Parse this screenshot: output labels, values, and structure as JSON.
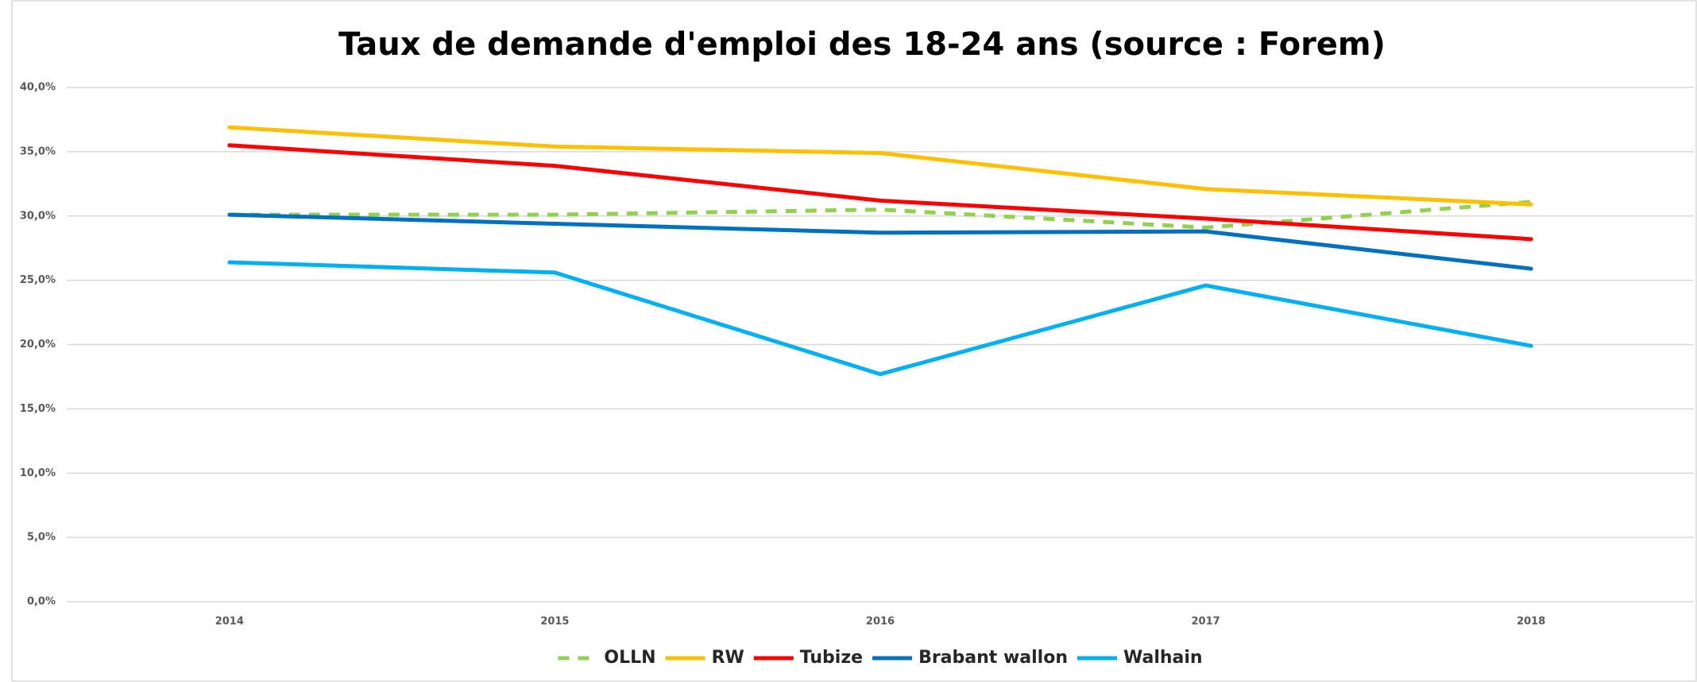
{
  "chart_data": {
    "type": "line",
    "title": "Taux de demande d'emploi des 18-24 ans (source : Forem)",
    "categories": [
      "2014",
      "2015",
      "2016",
      "2017",
      "2018"
    ],
    "series": [
      {
        "name": "OLLN",
        "color": "#92d050",
        "dash": true,
        "values": [
          30.1,
          30.1,
          30.5,
          29.1,
          31.1
        ]
      },
      {
        "name": "RW",
        "color": "#ffc000",
        "values": [
          36.9,
          35.4,
          34.9,
          32.1,
          30.9
        ]
      },
      {
        "name": "Tubize",
        "color": "#ff0000",
        "values": [
          35.5,
          33.9,
          31.2,
          29.8,
          28.2
        ]
      },
      {
        "name": "Brabant wallon",
        "color": "#0070c0",
        "values": [
          30.1,
          29.4,
          28.7,
          28.8,
          25.9
        ]
      },
      {
        "name": "Walhain",
        "color": "#00b0f0",
        "values": [
          26.4,
          25.6,
          17.7,
          24.6,
          19.9
        ]
      }
    ],
    "ylim": [
      0,
      40
    ],
    "yticks": [
      {
        "value": 0,
        "label": "0,0%"
      },
      {
        "value": 5,
        "label": "5,0%"
      },
      {
        "value": 10,
        "label": "10,0%"
      },
      {
        "value": 15,
        "label": "15,0%"
      },
      {
        "value": 20,
        "label": "20,0%"
      },
      {
        "value": 25,
        "label": "25,0%"
      },
      {
        "value": 30,
        "label": "30,0%"
      },
      {
        "value": 35,
        "label": "35,0%"
      },
      {
        "value": 40,
        "label": "40,0%"
      }
    ],
    "grid": true,
    "legend": "bottom"
  }
}
